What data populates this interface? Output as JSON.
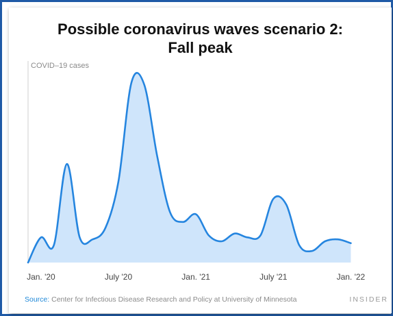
{
  "chart_data": {
    "type": "area",
    "title": [
      "Possible coronavirus waves scenario 2:",
      "Fall peak"
    ],
    "ylabel": "COVID–19 cases",
    "xlabel": "",
    "x_ticks": [
      "Jan. '20",
      "July '20",
      "Jan. '21",
      "July '21",
      "Jan. '22"
    ],
    "x_tick_positions": [
      "2020-01",
      "2020-07",
      "2021-01",
      "2021-07",
      "2022-01"
    ],
    "xlim": [
      "2019-12",
      "2022-04"
    ],
    "ylim": [
      0,
      100
    ],
    "grid": false,
    "series": [
      {
        "values": [
          {
            "x": "2019-12",
            "y": 0
          },
          {
            "x": "2020-01",
            "y": 13
          },
          {
            "x": "2020-02",
            "y": 9
          },
          {
            "x": "2020-03",
            "y": 51
          },
          {
            "x": "2020-04",
            "y": 13
          },
          {
            "x": "2020-05",
            "y": 12
          },
          {
            "x": "2020-06",
            "y": 18
          },
          {
            "x": "2020-07",
            "y": 42
          },
          {
            "x": "2020-08",
            "y": 93
          },
          {
            "x": "2020-09",
            "y": 92
          },
          {
            "x": "2020-10",
            "y": 55
          },
          {
            "x": "2020-11",
            "y": 26
          },
          {
            "x": "2020-12",
            "y": 21
          },
          {
            "x": "2021-01",
            "y": 25
          },
          {
            "x": "2021-02",
            "y": 14
          },
          {
            "x": "2021-03",
            "y": 11
          },
          {
            "x": "2021-04",
            "y": 15
          },
          {
            "x": "2021-05",
            "y": 13
          },
          {
            "x": "2021-06",
            "y": 14
          },
          {
            "x": "2021-07",
            "y": 33
          },
          {
            "x": "2021-08",
            "y": 30
          },
          {
            "x": "2021-09",
            "y": 9
          },
          {
            "x": "2021-10",
            "y": 6
          },
          {
            "x": "2021-11",
            "y": 11
          },
          {
            "x": "2021-12",
            "y": 12
          },
          {
            "x": "2022-01",
            "y": 10
          }
        ]
      }
    ]
  },
  "footer": {
    "source_label": "Source:",
    "source_text": " Center for Infectious Disease Research and Policy at University of Minnesota",
    "brand": "INSIDER"
  },
  "colors": {
    "line": "#2585df",
    "fill": "#cfe5fb",
    "axis": "#cfcfcf",
    "frame": "#1f5aa6"
  }
}
